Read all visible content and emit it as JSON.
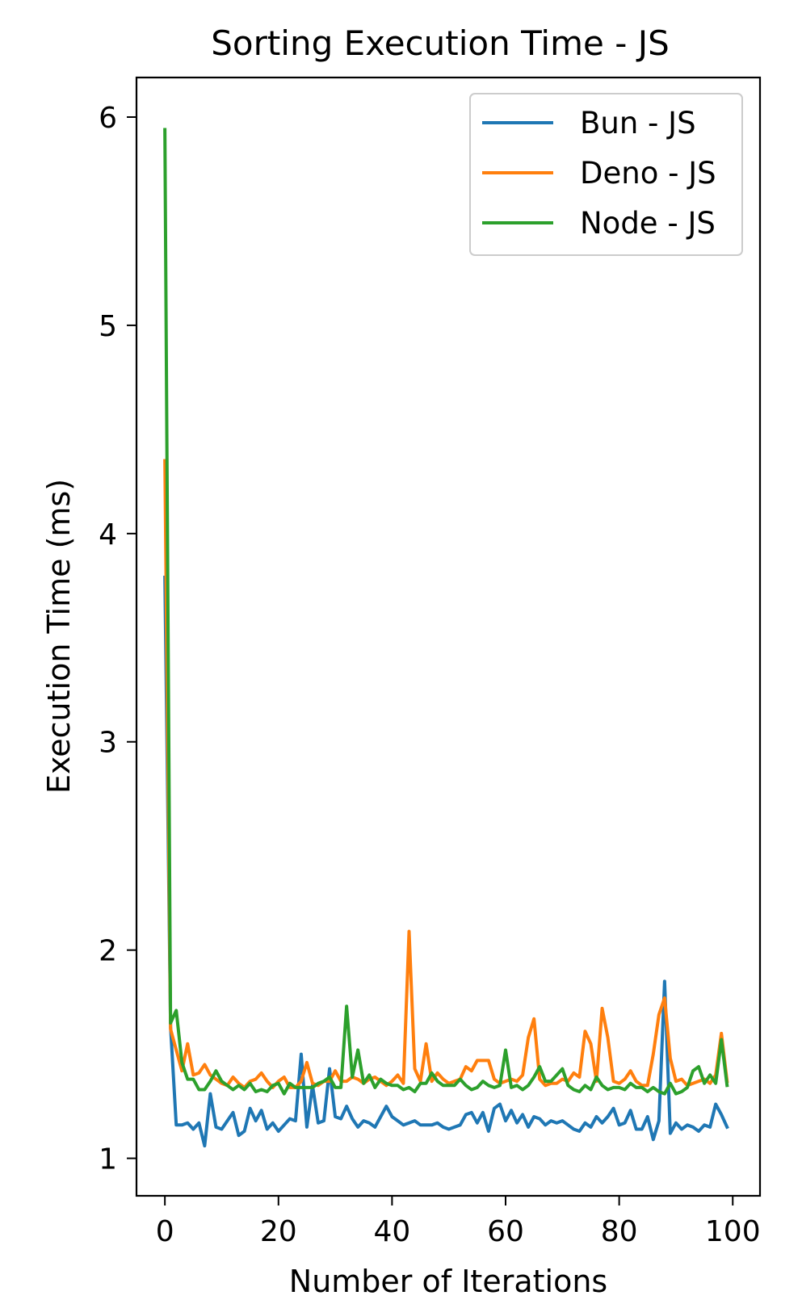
{
  "chart_data": {
    "type": "line",
    "title": "Sorting Execution Time - JS",
    "xlabel": "Number of Iterations",
    "ylabel": "Execution Time (ms)",
    "xlim": [
      -5,
      104.8
    ],
    "ylim": [
      0.82,
      6.19
    ],
    "xticks": [
      0,
      20,
      40,
      60,
      80,
      100
    ],
    "yticks": [
      1,
      2,
      3,
      4,
      5,
      6
    ],
    "grid": false,
    "legend_position": "top-right",
    "series": [
      {
        "name": "Bun - JS",
        "color": "#1f77b4",
        "values": [
          3.79,
          1.63,
          1.16,
          1.16,
          1.17,
          1.14,
          1.17,
          1.06,
          1.31,
          1.15,
          1.14,
          1.18,
          1.22,
          1.11,
          1.13,
          1.24,
          1.18,
          1.23,
          1.14,
          1.17,
          1.13,
          1.16,
          1.19,
          1.18,
          1.5,
          1.15,
          1.35,
          1.17,
          1.18,
          1.43,
          1.2,
          1.19,
          1.25,
          1.19,
          1.15,
          1.18,
          1.17,
          1.15,
          1.2,
          1.25,
          1.2,
          1.18,
          1.16,
          1.17,
          1.18,
          1.16,
          1.16,
          1.16,
          1.17,
          1.15,
          1.14,
          1.15,
          1.16,
          1.21,
          1.22,
          1.17,
          1.22,
          1.13,
          1.24,
          1.26,
          1.18,
          1.23,
          1.17,
          1.21,
          1.15,
          1.2,
          1.19,
          1.16,
          1.18,
          1.17,
          1.18,
          1.16,
          1.14,
          1.13,
          1.17,
          1.15,
          1.2,
          1.17,
          1.2,
          1.24,
          1.16,
          1.17,
          1.23,
          1.14,
          1.14,
          1.2,
          1.09,
          1.18,
          1.85,
          1.12,
          1.17,
          1.14,
          1.16,
          1.15,
          1.13,
          1.16,
          1.15,
          1.26,
          1.21,
          1.15
        ]
      },
      {
        "name": "Deno - JS",
        "color": "#ff7f0e",
        "values": [
          4.35,
          1.62,
          1.52,
          1.42,
          1.55,
          1.4,
          1.41,
          1.45,
          1.4,
          1.38,
          1.36,
          1.35,
          1.39,
          1.36,
          1.34,
          1.37,
          1.38,
          1.41,
          1.37,
          1.34,
          1.37,
          1.39,
          1.34,
          1.34,
          1.37,
          1.46,
          1.36,
          1.35,
          1.37,
          1.37,
          1.42,
          1.37,
          1.37,
          1.39,
          1.38,
          1.36,
          1.38,
          1.39,
          1.37,
          1.35,
          1.37,
          1.4,
          1.36,
          2.09,
          1.43,
          1.37,
          1.55,
          1.37,
          1.41,
          1.38,
          1.36,
          1.37,
          1.38,
          1.44,
          1.42,
          1.47,
          1.47,
          1.47,
          1.38,
          1.36,
          1.37,
          1.38,
          1.37,
          1.4,
          1.58,
          1.67,
          1.38,
          1.35,
          1.36,
          1.36,
          1.38,
          1.37,
          1.41,
          1.39,
          1.61,
          1.55,
          1.37,
          1.72,
          1.58,
          1.37,
          1.36,
          1.38,
          1.42,
          1.37,
          1.35,
          1.35,
          1.5,
          1.69,
          1.77,
          1.48,
          1.37,
          1.38,
          1.35,
          1.36,
          1.37,
          1.38,
          1.36,
          1.4,
          1.6,
          1.37
        ]
      },
      {
        "name": "Node - JS",
        "color": "#2ca02c",
        "values": [
          5.94,
          1.65,
          1.71,
          1.46,
          1.38,
          1.38,
          1.33,
          1.33,
          1.37,
          1.42,
          1.37,
          1.35,
          1.33,
          1.35,
          1.33,
          1.36,
          1.32,
          1.33,
          1.32,
          1.35,
          1.36,
          1.31,
          1.36,
          1.34,
          1.34,
          1.34,
          1.34,
          1.36,
          1.37,
          1.39,
          1.34,
          1.34,
          1.73,
          1.39,
          1.52,
          1.36,
          1.4,
          1.34,
          1.38,
          1.36,
          1.35,
          1.35,
          1.33,
          1.34,
          1.32,
          1.36,
          1.36,
          1.41,
          1.37,
          1.35,
          1.35,
          1.35,
          1.38,
          1.35,
          1.33,
          1.34,
          1.37,
          1.35,
          1.34,
          1.35,
          1.52,
          1.34,
          1.35,
          1.33,
          1.35,
          1.39,
          1.44,
          1.37,
          1.37,
          1.4,
          1.43,
          1.35,
          1.33,
          1.32,
          1.35,
          1.33,
          1.39,
          1.35,
          1.33,
          1.34,
          1.34,
          1.33,
          1.36,
          1.34,
          1.34,
          1.32,
          1.34,
          1.32,
          1.31,
          1.36,
          1.31,
          1.32,
          1.34,
          1.42,
          1.44,
          1.36,
          1.4,
          1.36,
          1.57,
          1.35
        ]
      }
    ]
  }
}
